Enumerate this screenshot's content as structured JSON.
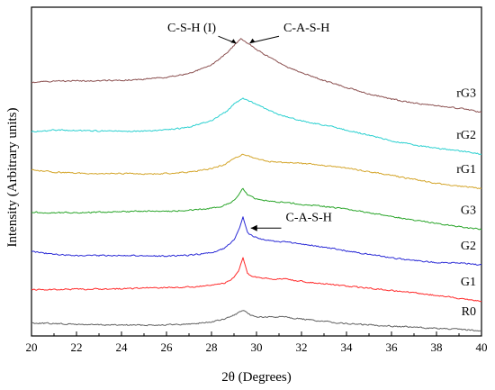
{
  "chart_data": {
    "type": "line",
    "title": "",
    "xlabel": "2θ (Degrees)",
    "ylabel": "Intensity (Arbitrary units)",
    "xlim": [
      20,
      40
    ],
    "xticks": [
      "20",
      "22",
      "24",
      "26",
      "28",
      "30",
      "32",
      "34",
      "36",
      "38",
      "40"
    ],
    "yticks_shown": false,
    "grid": false,
    "series": [
      {
        "name": "R0",
        "color": "#606060",
        "x": [
          20,
          21,
          22,
          23,
          24,
          25,
          26,
          27,
          28,
          28.6,
          29.0,
          29.2,
          29.4,
          29.6,
          29.9,
          30.3,
          30.8,
          31.3,
          31.5,
          32,
          33,
          34,
          35,
          36,
          37,
          38,
          39,
          40
        ],
        "y": [
          2.7,
          2.55,
          2.4,
          2.3,
          2.25,
          2.25,
          2.3,
          2.45,
          2.9,
          3.5,
          4.3,
          4.8,
          5.3,
          4.6,
          4.0,
          3.9,
          3.9,
          4.1,
          3.8,
          3.5,
          3.0,
          2.55,
          2.3,
          2.05,
          1.8,
          1.55,
          1.35,
          1.1
        ]
      },
      {
        "name": "G1",
        "color": "#ff2a2a",
        "x": [
          20,
          21,
          22,
          23,
          24,
          25,
          26,
          27,
          28,
          28.6,
          29.0,
          29.2,
          29.4,
          29.6,
          29.9,
          30.3,
          30.8,
          31.3,
          31.5,
          32,
          33,
          34,
          35,
          36,
          37,
          38,
          39,
          40
        ],
        "y": [
          9.6,
          9.6,
          9.65,
          9.7,
          9.75,
          9.9,
          10.0,
          10.1,
          10.4,
          11.0,
          12.0,
          13.5,
          16.2,
          12.8,
          12.2,
          11.9,
          11.7,
          11.9,
          11.6,
          11.3,
          10.8,
          10.3,
          9.9,
          9.4,
          8.9,
          8.4,
          7.8,
          7.2
        ]
      },
      {
        "name": "G2",
        "color": "#2b2bd6",
        "x": [
          20,
          21,
          22,
          23,
          24,
          25,
          26,
          27,
          28,
          28.6,
          29.0,
          29.2,
          29.4,
          29.6,
          29.9,
          30.3,
          30.8,
          31.3,
          32,
          33,
          34,
          35,
          36,
          37,
          38,
          39,
          40
        ],
        "y": [
          17.5,
          16.9,
          16.6,
          16.6,
          16.7,
          16.6,
          16.5,
          16.7,
          17.2,
          18.2,
          19.8,
          21.8,
          24.5,
          21.4,
          20.5,
          19.9,
          19.6,
          19.4,
          19.0,
          18.4,
          17.6,
          16.9,
          16.2,
          15.6,
          15.2,
          15.1,
          14.7
        ]
      },
      {
        "name": "G3",
        "color": "#2aa52a",
        "x": [
          20,
          21,
          22,
          23,
          24,
          25,
          26,
          27,
          28,
          28.6,
          29.0,
          29.2,
          29.4,
          29.6,
          29.9,
          30.3,
          30.8,
          31.3,
          32,
          33,
          34,
          35,
          36,
          37,
          38,
          39,
          40
        ],
        "y": [
          25.6,
          25.5,
          25.5,
          25.6,
          25.7,
          25.8,
          25.8,
          26.0,
          26.4,
          27.0,
          28.0,
          29.2,
          30.6,
          29.1,
          28.5,
          28.1,
          27.8,
          27.6,
          27.2,
          26.8,
          26.2,
          25.5,
          24.7,
          24.0,
          23.3,
          22.6,
          22.0
        ]
      },
      {
        "name": "rG1",
        "color": "#d4a52a",
        "x": [
          20,
          21,
          22,
          23,
          24,
          25,
          26,
          27,
          28,
          28.6,
          29.0,
          29.4,
          29.8,
          30.2,
          30.6,
          31.0,
          31.5,
          32,
          33,
          34,
          35,
          36,
          37,
          38,
          39,
          40
        ],
        "y": [
          34.3,
          33.9,
          33.7,
          33.6,
          33.6,
          33.5,
          33.6,
          33.9,
          34.6,
          35.5,
          36.6,
          37.6,
          37.0,
          36.4,
          36.1,
          35.9,
          35.8,
          35.7,
          35.3,
          34.7,
          34.0,
          33.2,
          32.4,
          31.6,
          31.0,
          30.5
        ]
      },
      {
        "name": "rG2",
        "color": "#2ad0d0",
        "x": [
          20,
          21,
          22,
          23,
          24,
          25,
          26,
          27,
          28,
          28.6,
          29.0,
          29.4,
          29.8,
          30.2,
          30.6,
          31.0,
          31.5,
          32,
          33,
          34,
          35,
          36,
          37,
          38,
          39,
          40
        ],
        "y": [
          42.3,
          42.6,
          42.5,
          42.4,
          42.3,
          42.4,
          42.6,
          43.2,
          44.6,
          46.2,
          47.9,
          49.2,
          48.3,
          47.5,
          46.6,
          45.8,
          45.1,
          44.5,
          43.6,
          42.6,
          41.5,
          40.4,
          39.5,
          38.8,
          38.3,
          37.6
        ]
      },
      {
        "name": "rG3",
        "color": "#8b5050",
        "x": [
          20,
          21,
          22,
          23,
          24,
          25,
          26,
          27,
          28,
          28.6,
          29.0,
          29.3,
          29.6,
          29.9,
          30.3,
          30.8,
          31.3,
          32,
          33,
          34,
          35,
          36,
          37,
          38,
          39,
          40
        ],
        "y": [
          52.5,
          52.7,
          52.8,
          52.8,
          52.9,
          53.1,
          53.5,
          54.3,
          56.0,
          58.2,
          60.1,
          61.4,
          60.6,
          59.6,
          58.4,
          57.0,
          55.7,
          54.5,
          52.8,
          51.4,
          50.1,
          49.0,
          48.2,
          47.6,
          47.1,
          46.3
        ]
      }
    ],
    "annotations": [
      {
        "text": "C-S-H (I)",
        "x": 28.2,
        "y": 63.0
      },
      {
        "text": "C-A-S-H",
        "x": 31.2,
        "y": 63.0
      },
      {
        "text": "C-A-S-H",
        "x": 31.3,
        "y": 23.8
      }
    ]
  }
}
